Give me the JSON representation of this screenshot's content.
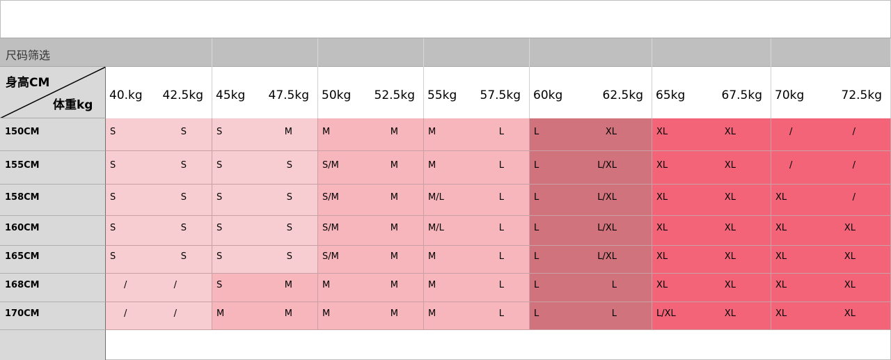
{
  "header": {
    "filter_label": "尺码筛选",
    "corner_height": "身高CM",
    "corner_weight": "体重kg"
  },
  "weights": [
    "40.kg",
    "42.5kg",
    "45kg",
    "47.5kg",
    "50kg",
    "52.5kg",
    "55kg",
    "57.5kg",
    "60kg",
    "62.5kg",
    "65kg",
    "67.5kg",
    "70kg",
    "72.5kg"
  ],
  "heights": [
    "150CM",
    "155CM",
    "158CM",
    "160CM",
    "165CM",
    "168CM",
    "170CM"
  ],
  "sizes": [
    [
      "S",
      "S",
      "S",
      "M",
      "M",
      "M",
      "M",
      "L",
      "L",
      "XL",
      "XL",
      "XL",
      "/",
      "/"
    ],
    [
      "S",
      "S",
      "S",
      "S",
      "S/M",
      "M",
      "M",
      "L",
      "L",
      "L/XL",
      "XL",
      "XL",
      "/",
      "/"
    ],
    [
      "S",
      "S",
      "S",
      "S",
      "S/M",
      "M",
      "M/L",
      "L",
      "L",
      "L/XL",
      "XL",
      "XL",
      "XL",
      "/"
    ],
    [
      "S",
      "S",
      "S",
      "S",
      "S/M",
      "M",
      "M/L",
      "L",
      "L",
      "L/XL",
      "XL",
      "XL",
      "XL",
      "XL"
    ],
    [
      "S",
      "S",
      "S",
      "S",
      "S/M",
      "M",
      "M",
      "L",
      "L",
      "L/XL",
      "XL",
      "XL",
      "XL",
      "XL"
    ],
    [
      "/",
      "/",
      "S",
      "M",
      "M",
      "M",
      "M",
      "L",
      "L",
      "L",
      "XL",
      "XL",
      "XL",
      "XL"
    ],
    [
      "/",
      "/",
      "M",
      "M",
      "M",
      "M",
      "M",
      "L",
      "L",
      "L",
      "L/XL",
      "XL",
      "XL",
      "XL"
    ]
  ],
  "colors": {
    "light_pink": "#f8cdd2",
    "mid_pink": "#f7b5bc",
    "dusty_rose": "#d0737c",
    "hot_pink": "#f36478",
    "label_gray": "#d9d9d9",
    "header_gray": "#bfbfbf"
  }
}
